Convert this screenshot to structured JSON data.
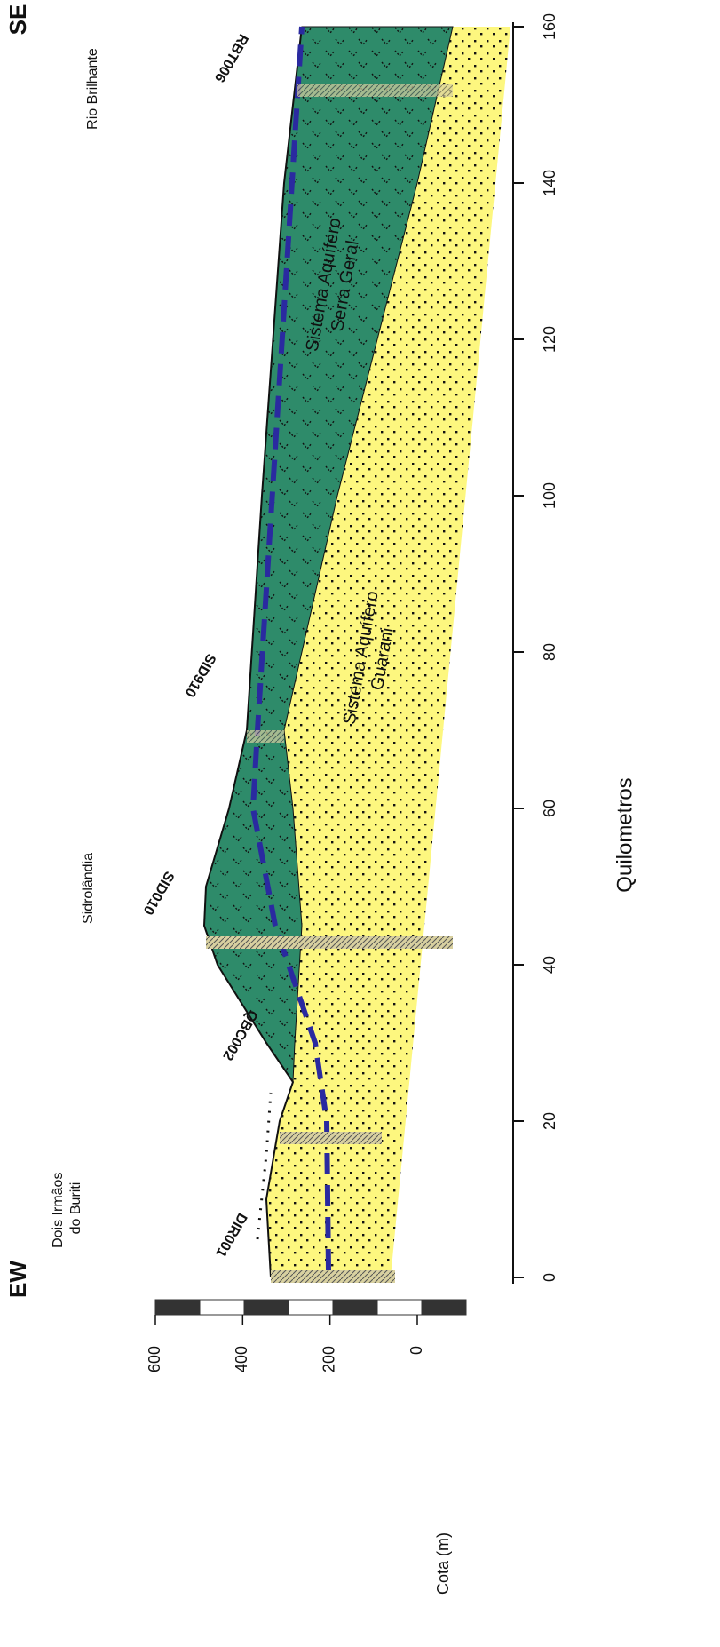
{
  "header": {
    "left": "EW",
    "right": "SE"
  },
  "places": [
    [
      "Dois Irmãos",
      "do Buriti"
    ],
    [
      "Sidrolândia"
    ],
    [
      "Rio Brilhante"
    ]
  ],
  "wells": [
    "DIR001",
    "QBC002",
    "SID010",
    "SID910",
    "RBT006"
  ],
  "units": [
    [
      "Sistema Aquífero",
      "Serra Geral"
    ],
    [
      "Sistema Aquífero",
      "Guarani"
    ]
  ],
  "x_axis": {
    "title": "Quilometros",
    "ticks": [
      0,
      20,
      40,
      60,
      80,
      100,
      120,
      140,
      160
    ]
  },
  "y_axis": {
    "title": "Cota (m)",
    "ticks": [
      0,
      200,
      400,
      600
    ]
  }
}
